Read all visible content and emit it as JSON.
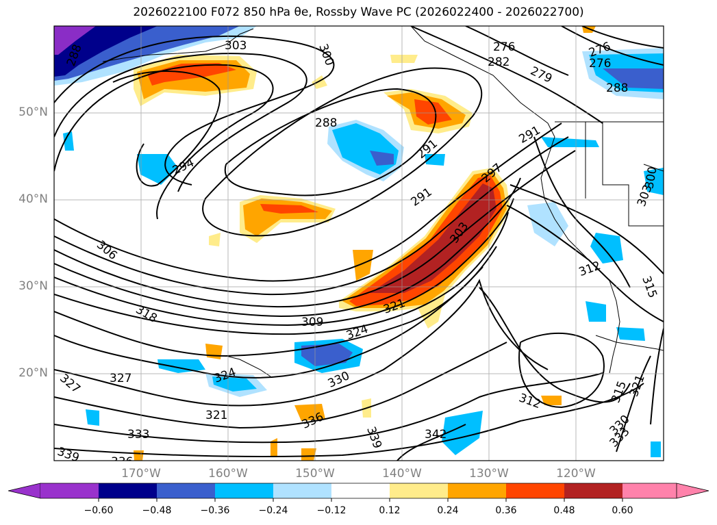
{
  "title": "2026022100 F072 850 hPa θe, Rossby Wave PC (2026022400 - 2026022700)",
  "map": {
    "lat_labels": [
      "50°N",
      "40°N",
      "30°N",
      "20°N"
    ],
    "lon_labels": [
      "170°W",
      "160°W",
      "150°W",
      "140°W",
      "130°W",
      "120°W"
    ],
    "contour_labels": [
      "303",
      "300",
      "276",
      "282",
      "279",
      "276",
      "288",
      "276",
      "288",
      "294",
      "291",
      "297",
      "291",
      "303",
      "306",
      "309",
      "318",
      "321",
      "324",
      "327",
      "327",
      "324",
      "330",
      "321",
      "333",
      "336",
      "339",
      "339",
      "342",
      "336",
      "312",
      "312",
      "315",
      "315",
      "321",
      "330",
      "333",
      "303",
      "300",
      "291",
      "288"
    ]
  },
  "colorbar": {
    "ticks": [
      "−0.60",
      "−0.48",
      "−0.36",
      "−0.24",
      "−0.12",
      "0.12",
      "0.24",
      "0.36",
      "0.48",
      "0.60"
    ],
    "colors": [
      "#9932CC",
      "#00008B",
      "#3A5FCD",
      "#00BFFF",
      "#B0E2FF",
      "#FFFFFF",
      "#FFEC8B",
      "#FFA500",
      "#FF4500",
      "#B22222",
      "#FF82AB"
    ]
  }
}
